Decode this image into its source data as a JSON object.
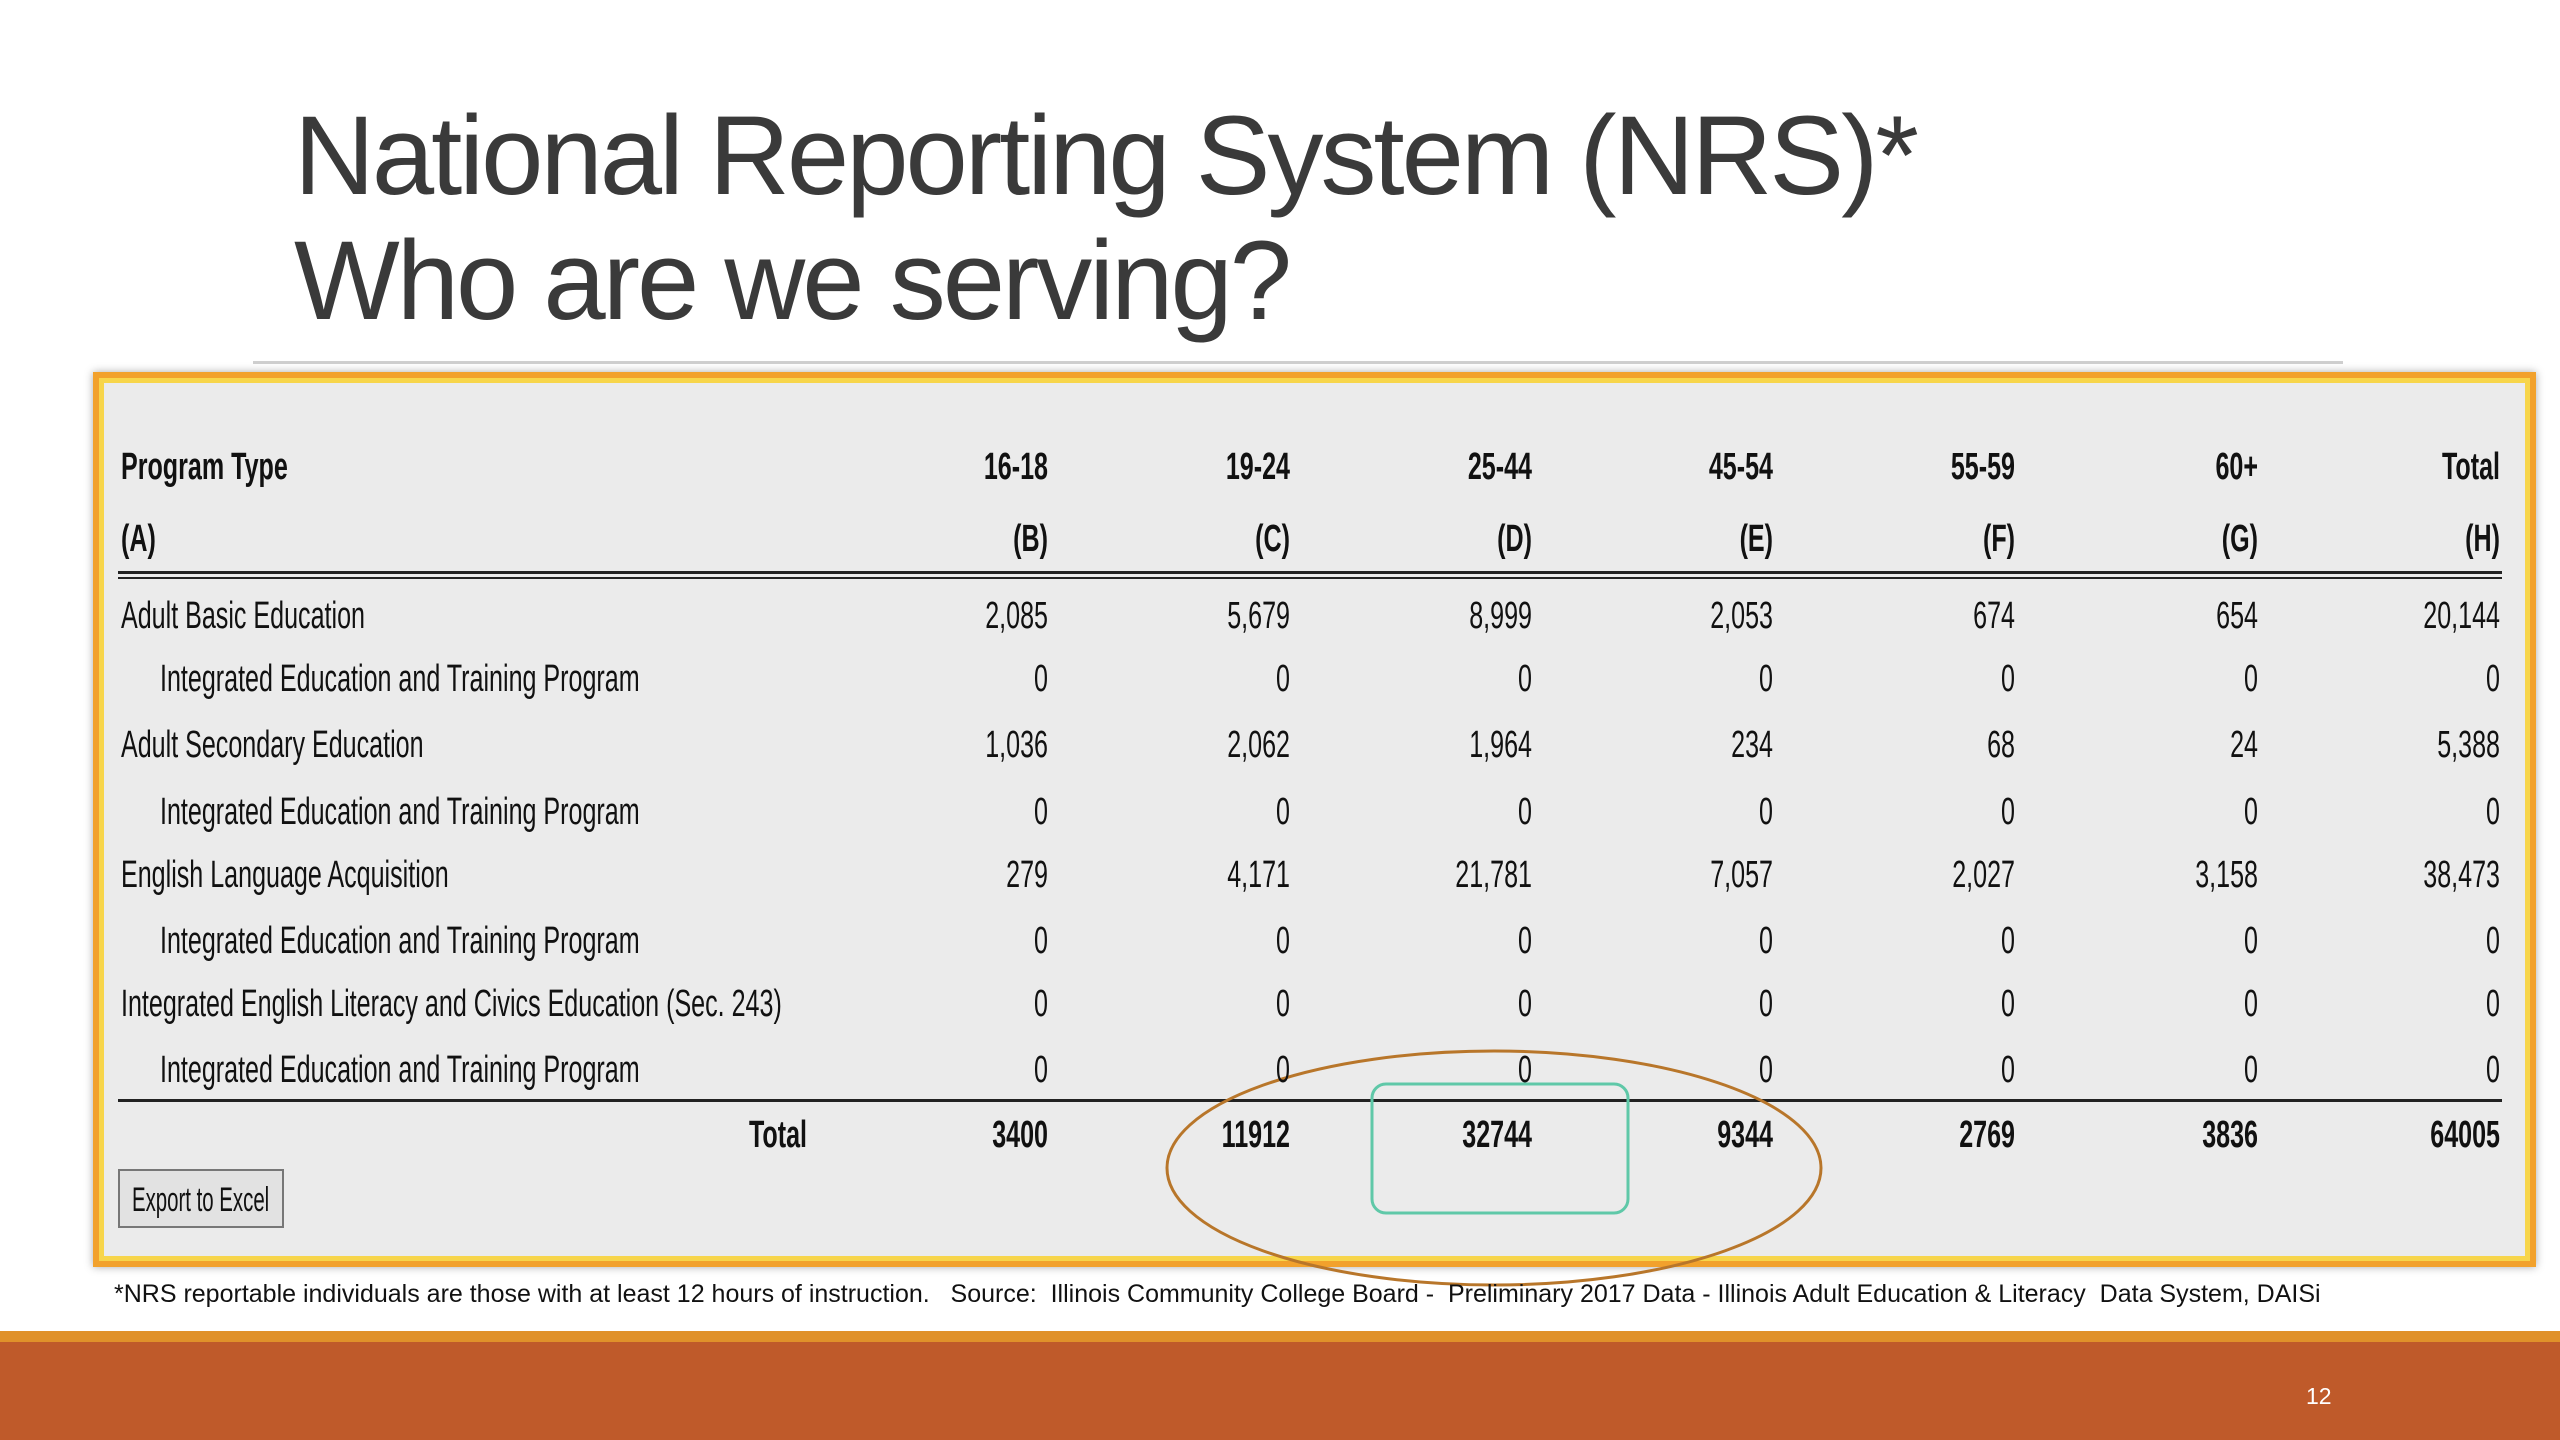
{
  "title": {
    "line1": "National Reporting System (NRS)*",
    "line2": "Who are we serving?"
  },
  "table": {
    "header": [
      [
        "Program Type",
        "16-18",
        "19-24",
        "25-44",
        "45-54",
        "55-59",
        "60+",
        "Total"
      ],
      [
        "(A)",
        "(B)",
        "(C)",
        "(D)",
        "(E)",
        "(F)",
        "(G)",
        "(H)"
      ]
    ],
    "rows": [
      [
        "Adult Basic Education",
        "2,085",
        "5,679",
        "8,999",
        "2,053",
        "674",
        "654",
        "20,144"
      ],
      [
        "Integrated Education and Training Program",
        "0",
        "0",
        "0",
        "0",
        "0",
        "0",
        "0"
      ],
      [
        "Adult Secondary Education",
        "1,036",
        "2,062",
        "1,964",
        "234",
        "68",
        "24",
        "5,388"
      ],
      [
        "Integrated Education and Training Program",
        "0",
        "0",
        "0",
        "0",
        "0",
        "0",
        "0"
      ],
      [
        "English Language Acquisition",
        "279",
        "4,171",
        "21,781",
        "7,057",
        "2,027",
        "3,158",
        "38,473"
      ],
      [
        "Integrated Education and Training Program",
        "0",
        "0",
        "0",
        "0",
        "0",
        "0",
        "0"
      ],
      [
        "Integrated English Literacy and Civics Education (Sec. 243)",
        "0",
        "0",
        "0",
        "0",
        "0",
        "0",
        "0"
      ],
      [
        "Integrated Education and Training Program",
        "0",
        "0",
        "0",
        "0",
        "0",
        "0",
        "0"
      ]
    ],
    "total": [
      "Total",
      "3400",
      "11912",
      "32744",
      "9344",
      "2769",
      "3836",
      "64005"
    ]
  },
  "button": "Export to Excel",
  "footnote": "*NRS reportable individuals are those with at least 12 hours of instruction.   Source:  Illinois Community College Board -  Preliminary 2017 Data - Illinois Adult Education & Literacy  Data System, DAISi",
  "page_number": "12"
}
